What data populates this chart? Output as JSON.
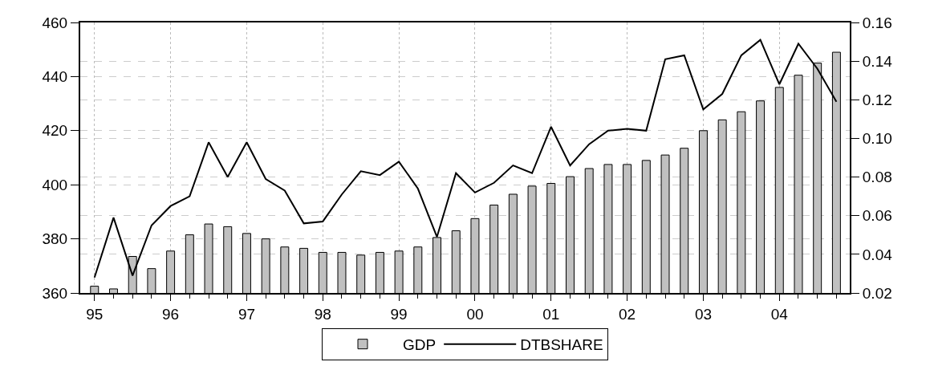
{
  "chart_data": {
    "type": "bar",
    "categories": [
      "95",
      null,
      null,
      null,
      "96",
      null,
      null,
      null,
      "97",
      null,
      null,
      null,
      "98",
      null,
      null,
      null,
      "99",
      null,
      null,
      null,
      "00",
      null,
      null,
      null,
      "01",
      null,
      null,
      null,
      "02",
      null,
      null,
      null,
      "03",
      null,
      null,
      null,
      "04",
      null,
      null,
      null
    ],
    "series": [
      {
        "name": "GDP",
        "color": "#c0c0c0",
        "values": [
          362.5,
          361.5,
          373.5,
          369,
          375.5,
          381.5,
          385.5,
          384.5,
          382,
          380,
          377,
          376.5,
          375,
          375,
          374,
          375,
          375.5,
          377,
          380.5,
          383,
          387.5,
          392.5,
          396.5,
          399.5,
          400.5,
          403,
          406,
          407.5,
          407.5,
          409,
          411,
          413.5,
          420,
          424,
          427,
          431,
          436,
          440.5,
          445,
          449
        ]
      },
      {
        "name": "DTBSHARE",
        "type": "line",
        "axis": "y2",
        "color": "#000000",
        "values": [
          0.028,
          0.059,
          0.029,
          0.055,
          0.065,
          0.07,
          0.098,
          0.08,
          0.098,
          0.079,
          0.073,
          0.056,
          0.057,
          0.071,
          0.083,
          0.081,
          0.088,
          0.074,
          0.049,
          0.082,
          0.072,
          0.077,
          0.086,
          0.082,
          0.106,
          0.086,
          0.097,
          0.104,
          0.105,
          0.104,
          0.141,
          0.143,
          0.115,
          0.123,
          0.143,
          0.151,
          0.128,
          0.149,
          0.136,
          0.119
        ]
      }
    ],
    "ylim": [
      360,
      460
    ],
    "yticks": [
      360,
      380,
      400,
      420,
      440,
      460
    ],
    "y2lim": [
      0.02,
      0.16
    ],
    "y2ticks": [
      0.02,
      0.04,
      0.06,
      0.08,
      {
        "value": 0.1,
        "label": "0.10"
      },
      0.12,
      0.14,
      0.16
    ],
    "grid": true,
    "legend": "bottom",
    "marker": "none",
    "line_style": "solid"
  }
}
